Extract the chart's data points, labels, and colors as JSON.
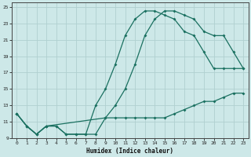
{
  "xlabel": "Humidex (Indice chaleur)",
  "bg_color": "#cde8e8",
  "grid_color": "#b0d0d0",
  "line_color": "#1a7060",
  "xlim": [
    -0.5,
    23.5
  ],
  "ylim": [
    9,
    25.5
  ],
  "xticks": [
    0,
    1,
    2,
    3,
    4,
    5,
    6,
    7,
    8,
    9,
    10,
    11,
    12,
    13,
    14,
    15,
    16,
    17,
    18,
    19,
    20,
    21,
    22,
    23
  ],
  "yticks": [
    9,
    11,
    13,
    15,
    17,
    19,
    21,
    23,
    25
  ],
  "line1_x": [
    0,
    1,
    2,
    3,
    4,
    5,
    6,
    7,
    8,
    9,
    10,
    11,
    12,
    13,
    14,
    15,
    16,
    17,
    18,
    19,
    20,
    21,
    22,
    23
  ],
  "line1_y": [
    12,
    10.5,
    9.5,
    10.5,
    10.5,
    9.5,
    9.5,
    9.5,
    13,
    15,
    18,
    21.5,
    23.5,
    24.5,
    24.5,
    24,
    23.5,
    22,
    21.5,
    19.5,
    17.5,
    17.5,
    17.5,
    17.5
  ],
  "line2_x": [
    0,
    1,
    2,
    3,
    4,
    5,
    6,
    7,
    8,
    9,
    10,
    11,
    12,
    13,
    14,
    15,
    16,
    17,
    18,
    19,
    20,
    21,
    22,
    23
  ],
  "line2_y": [
    12,
    10.5,
    9.5,
    10.5,
    10.5,
    9.5,
    9.5,
    9.5,
    9.5,
    11.5,
    11.5,
    11.5,
    11.5,
    11.5,
    11.5,
    11.5,
    12,
    12.5,
    13,
    13.5,
    13.5,
    14,
    14.5,
    14.5
  ],
  "line3_x": [
    0,
    1,
    2,
    3,
    9,
    10,
    11,
    12,
    13,
    14,
    15,
    16,
    17,
    18,
    19,
    20,
    21,
    22,
    23
  ],
  "line3_y": [
    12,
    10.5,
    9.5,
    10.5,
    11.5,
    13,
    15,
    18,
    21.5,
    23.5,
    24.5,
    24.5,
    24,
    23.5,
    22,
    21.5,
    21.5,
    19.5,
    17.5
  ]
}
